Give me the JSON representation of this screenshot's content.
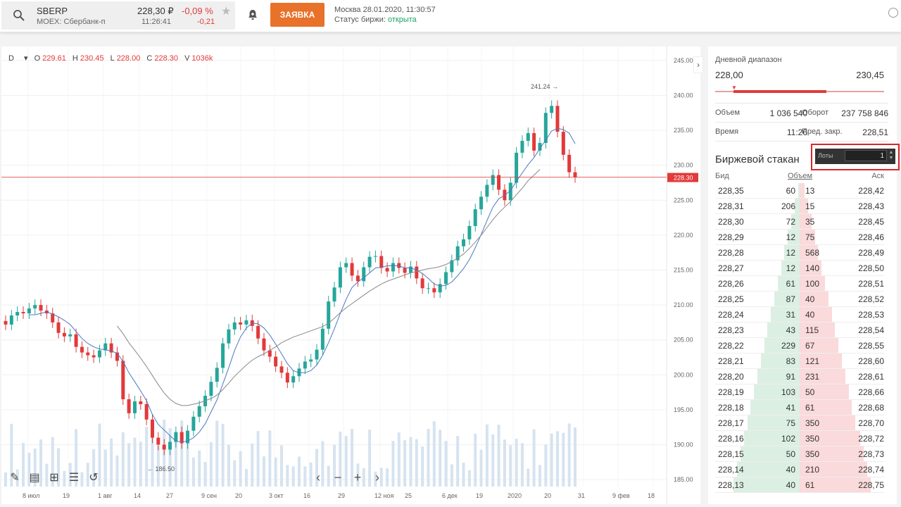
{
  "header": {
    "symbol": "SBERP",
    "exchange": "MOEX: Сбербанк-п",
    "price": "228,30 ₽",
    "change_pct": "-0,09 %",
    "time": "11:26:41",
    "change_abs": "-0,21",
    "order_button": "ЗАЯВКА",
    "market_time": "Москва 28.01.2020, 11:30:57",
    "status_label": "Статус биржи:",
    "status_value": "открыта",
    "icons": [
      "search-icon",
      "star-icon",
      "alert-bell-icon",
      "close-icon"
    ]
  },
  "chart": {
    "timeframe": "D",
    "ohlc": {
      "O": "229.61",
      "H": "230.45",
      "L": "228.00",
      "C": "228.30",
      "V": "1036k"
    },
    "current_price_label": "228.30",
    "max_label": "241.24 →",
    "min_label": "← 186.50",
    "y_ticks": [
      "245.00",
      "240.00",
      "235.00",
      "230.00",
      "225.00",
      "220.00",
      "215.00",
      "210.00",
      "205.00",
      "200.00",
      "195.00",
      "190.00",
      "185.00"
    ],
    "x_ticks": [
      "8 июл",
      "19",
      "1 авг",
      "14",
      "27",
      "9 сен",
      "20",
      "3 окт",
      "16",
      "29",
      "12 ноя",
      "25",
      "6 дек",
      "19",
      "2020",
      "20",
      "31",
      "9 фев",
      "18"
    ],
    "tools": [
      "pencil-icon",
      "layers-icon",
      "add-indicator-icon",
      "settings-sliders-icon",
      "reset-icon"
    ],
    "nav": [
      "‹",
      "−",
      "+",
      "›"
    ],
    "colors": {
      "up": "#26a69a",
      "down": "#e2393a",
      "ma_fast": "#4a78c2",
      "ma_slow": "#888888",
      "volume": "#d6e3f0"
    }
  },
  "chart_data": {
    "type": "candlestick",
    "title": "",
    "ylim": [
      184,
      246
    ],
    "y_ticks": [
      245,
      240,
      235,
      230,
      225,
      220,
      215,
      210,
      205,
      200,
      195,
      190,
      185
    ],
    "last_price": 228.3,
    "annotated_high": 241.24,
    "annotated_low": 186.5,
    "series": [
      {
        "name": "",
        "values": [
          207.2,
          208.5,
          209.0,
          208.8,
          209.5,
          210.0,
          209.2,
          208.8,
          207.5,
          206.0,
          205.5,
          205.8,
          204.0,
          203.2,
          202.8,
          202.5,
          203.5,
          204.5,
          203.2,
          202.0,
          196.5,
          194.5,
          196.2,
          195.8,
          193.6,
          191.0,
          190.0,
          189.3,
          190.4,
          191.8,
          190.2,
          192.0,
          194.0,
          195.5,
          197.0,
          199.0,
          201.0,
          204.5,
          206.5,
          207.5,
          207.2,
          207.8,
          207.0,
          205.2,
          203.5,
          202.6,
          201.2,
          200.3,
          198.9,
          199.8,
          200.9,
          201.9,
          202.2,
          203.6,
          206.6,
          210.5,
          212.5,
          215.4,
          216.0,
          214.2,
          213.4,
          215.4,
          216.9,
          217.0,
          215.3,
          214.8,
          216.0,
          215.3,
          214.6,
          215.5,
          213.8,
          212.4,
          212.4,
          211.8,
          213.0,
          214.7,
          216.4,
          218.4,
          219.4,
          221.3,
          223.7,
          225.5,
          227.2,
          228.6,
          226.5,
          225.0,
          227.5,
          231.8,
          233.5,
          234.6,
          232.1,
          233.2,
          237.5,
          238.5,
          234.8,
          231.5,
          229.0,
          228.3
        ]
      },
      {
        "name": "",
        "values": [
          null,
          null,
          null,
          null,
          208.6,
          208.6,
          208.8,
          209.0,
          208.7,
          208.3,
          207.8,
          207.2,
          206.2,
          205.2,
          204.5,
          204.0,
          203.7,
          203.6,
          203.4,
          203.1,
          201.9,
          200.3,
          199.0,
          197.7,
          196.3,
          194.3,
          192.9,
          192.1,
          191.3,
          190.5,
          190.4,
          190.5,
          191.0,
          191.8,
          193.0,
          194.7,
          196.4,
          198.7,
          201.0,
          203.5,
          205.4,
          206.7,
          207.4,
          207.3,
          206.7,
          205.7,
          204.4,
          203.0,
          201.6,
          200.6,
          200.3,
          200.3,
          200.6,
          201.4,
          202.8,
          204.6,
          206.6,
          208.8,
          210.8,
          212.5,
          213.3,
          213.9,
          214.6,
          215.3,
          215.4,
          215.6,
          215.6,
          215.6,
          215.3,
          215.3,
          215.0,
          214.5,
          213.8,
          213.0,
          212.7,
          212.8,
          213.3,
          214.2,
          215.2,
          216.5,
          218.2,
          220.1,
          222.1,
          224.0,
          225.2,
          225.7,
          226.4,
          227.7,
          228.9,
          230.1,
          231.1,
          232.4,
          233.6,
          234.9,
          235.3,
          235.1,
          234.6,
          233.1
        ]
      },
      {
        "name": "",
        "values": [
          null,
          null,
          null,
          null,
          null,
          null,
          null,
          null,
          null,
          null,
          null,
          null,
          null,
          null,
          null,
          null,
          null,
          null,
          null,
          207.0,
          205.9,
          204.6,
          203.5,
          202.4,
          201.2,
          199.9,
          198.6,
          197.4,
          196.5,
          195.9,
          195.6,
          195.6,
          195.8,
          196.0,
          196.3,
          196.6,
          197.1,
          197.9,
          198.8,
          199.8,
          200.6,
          201.4,
          202.1,
          202.6,
          203.0,
          203.5,
          204.0,
          204.6,
          205.0,
          205.4,
          205.7,
          206.0,
          206.3,
          206.6,
          206.9,
          207.4,
          208.1,
          208.9,
          209.6,
          210.2,
          210.8,
          211.4,
          212.0,
          212.5,
          213.0,
          213.4,
          213.7,
          214.0,
          214.3,
          214.6,
          214.8,
          215.0,
          215.2,
          215.3,
          215.5,
          215.8,
          216.2,
          216.7,
          217.3,
          218.1,
          219.0,
          220.0,
          221.1,
          222.2,
          223.2,
          224.0,
          224.8,
          225.8,
          226.7,
          227.8,
          228.6,
          229.4
        ]
      }
    ]
  },
  "info": {
    "title": "Дневной диапазон",
    "low": "228,00",
    "high": "230,45",
    "range_position": 0.0,
    "volume_label": "Объем",
    "volume": "1 036 540",
    "turnover_label": "Оборот",
    "turnover": "237 758 846",
    "time_label": "Время",
    "time": "11:26",
    "prev_close_label": "Пред. закр.",
    "prev_close": "228,51"
  },
  "orderbook": {
    "title": "Биржевой стакан",
    "lots_label": "Лоты",
    "lots_value": "1",
    "col_bid": "Бид",
    "col_volume": "Объем",
    "col_ask": "Аск",
    "rows": [
      {
        "bid": "228,35",
        "bid_vol": "60",
        "ask_vol": "13",
        "ask": "228,42"
      },
      {
        "bid": "228,31",
        "bid_vol": "206",
        "ask_vol": "15",
        "ask": "228,43"
      },
      {
        "bid": "228,30",
        "bid_vol": "72",
        "ask_vol": "35",
        "ask": "228,45"
      },
      {
        "bid": "228,29",
        "bid_vol": "12",
        "ask_vol": "75",
        "ask": "228,46"
      },
      {
        "bid": "228,28",
        "bid_vol": "12",
        "ask_vol": "568",
        "ask": "228,49"
      },
      {
        "bid": "228,27",
        "bid_vol": "12",
        "ask_vol": "140",
        "ask": "228,50"
      },
      {
        "bid": "228,26",
        "bid_vol": "61",
        "ask_vol": "100",
        "ask": "228,51"
      },
      {
        "bid": "228,25",
        "bid_vol": "87",
        "ask_vol": "40",
        "ask": "228,52"
      },
      {
        "bid": "228,24",
        "bid_vol": "31",
        "ask_vol": "40",
        "ask": "228,53"
      },
      {
        "bid": "228,23",
        "bid_vol": "43",
        "ask_vol": "115",
        "ask": "228,54"
      },
      {
        "bid": "228,22",
        "bid_vol": "229",
        "ask_vol": "67",
        "ask": "228,55"
      },
      {
        "bid": "228,21",
        "bid_vol": "83",
        "ask_vol": "121",
        "ask": "228,60"
      },
      {
        "bid": "228,20",
        "bid_vol": "91",
        "ask_vol": "231",
        "ask": "228,61"
      },
      {
        "bid": "228,19",
        "bid_vol": "103",
        "ask_vol": "50",
        "ask": "228,66"
      },
      {
        "bid": "228,18",
        "bid_vol": "41",
        "ask_vol": "61",
        "ask": "228,68"
      },
      {
        "bid": "228,17",
        "bid_vol": "75",
        "ask_vol": "350",
        "ask": "228,70"
      },
      {
        "bid": "228,16",
        "bid_vol": "102",
        "ask_vol": "350",
        "ask": "228,72"
      },
      {
        "bid": "228,15",
        "bid_vol": "50",
        "ask_vol": "350",
        "ask": "228,73"
      },
      {
        "bid": "228,14",
        "bid_vol": "40",
        "ask_vol": "210",
        "ask": "228,74"
      },
      {
        "bid": "228,13",
        "bid_vol": "40",
        "ask_vol": "61",
        "ask": "228,75"
      }
    ],
    "bid_depth": [
      0.02,
      0.06,
      0.1,
      0.14,
      0.18,
      0.22,
      0.26,
      0.3,
      0.34,
      0.38,
      0.42,
      0.46,
      0.5,
      0.54,
      0.58,
      0.62,
      0.66,
      0.7,
      0.74,
      0.78
    ],
    "ask_depth": [
      0.06,
      0.1,
      0.14,
      0.18,
      0.22,
      0.26,
      0.3,
      0.34,
      0.38,
      0.42,
      0.46,
      0.5,
      0.54,
      0.58,
      0.62,
      0.66,
      0.72,
      0.76,
      0.8,
      0.84
    ]
  }
}
